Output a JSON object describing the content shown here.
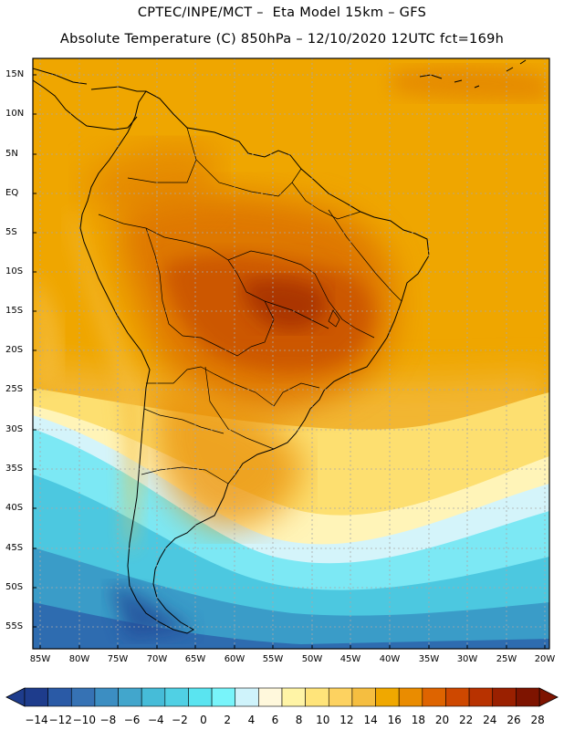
{
  "title": {
    "line1": "CPTEC/INPE/MCT –  Eta Model 15km – GFS",
    "line2": "Absolute Temperature (C) 850hPa – 12/10/2020 12UTC fct=169h"
  },
  "map": {
    "lat_labels": [
      "15N",
      "10N",
      "5N",
      "EQ",
      "5S",
      "10S",
      "15S",
      "20S",
      "25S",
      "30S",
      "35S",
      "40S",
      "45S",
      "50S",
      "55S"
    ],
    "lon_labels": [
      "85W",
      "80W",
      "75W",
      "70W",
      "65W",
      "60W",
      "55W",
      "50W",
      "45W",
      "40W",
      "35W",
      "30W",
      "25W",
      "20W"
    ]
  },
  "colorbar": {
    "labels": [
      "-14",
      "-12",
      "-10",
      "-8",
      "-6",
      "-4",
      "-2",
      "0",
      "2",
      "4",
      "6",
      "8",
      "10",
      "12",
      "14",
      "16",
      "18",
      "20",
      "22",
      "24",
      "26",
      "28"
    ],
    "colors": [
      "#1e3c8c",
      "#2a5aa6",
      "#3672b4",
      "#3c8ec2",
      "#42a6cc",
      "#46bcd8",
      "#50d0e4",
      "#5ae4f0",
      "#78f4fa",
      "#cff3fb",
      "#fff8dc",
      "#fff4a6",
      "#ffe47a",
      "#fdd260",
      "#f5be40",
      "#f0a800",
      "#ea8c00",
      "#de6400",
      "#ce4800",
      "#b83200",
      "#9a2000",
      "#7e1400"
    ]
  }
}
